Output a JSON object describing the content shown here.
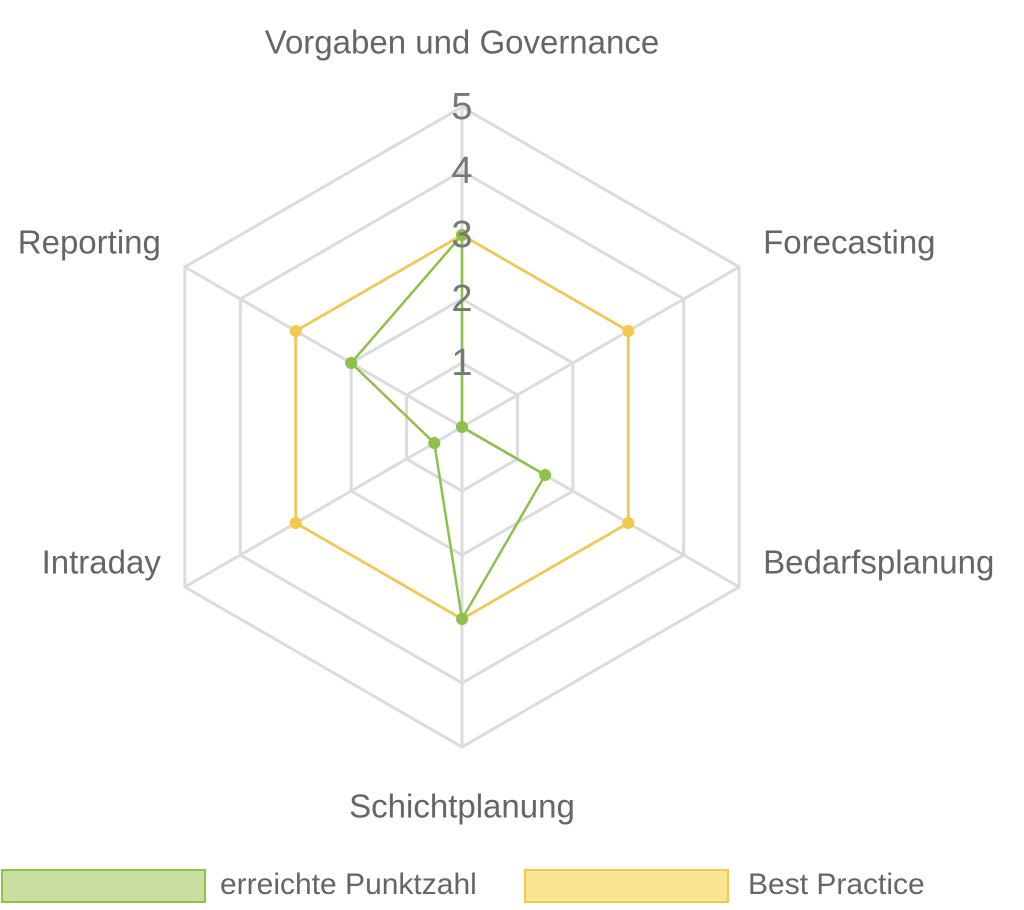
{
  "chart_data": {
    "type": "radar",
    "categories": [
      "Vorgaben und Governance",
      "Forecasting",
      "Bedarfsplanung",
      "Schichtplanung",
      "Intraday",
      "Reporting"
    ],
    "series": [
      {
        "name": "erreichte Punktzahl",
        "values": [
          3,
          0,
          1.5,
          3,
          0.5,
          2
        ],
        "line_color": "#8fc14a",
        "fill_color": "#c9dfa0"
      },
      {
        "name": "Best Practice",
        "values": [
          3,
          3,
          3,
          3,
          3,
          3
        ],
        "line_color": "#f2c94c",
        "fill_color": "#fbe592"
      }
    ],
    "scale": {
      "min": 0,
      "max": 5,
      "ticks": [
        1,
        2,
        3,
        4,
        5
      ]
    },
    "grid": true,
    "legend_position": "bottom"
  }
}
